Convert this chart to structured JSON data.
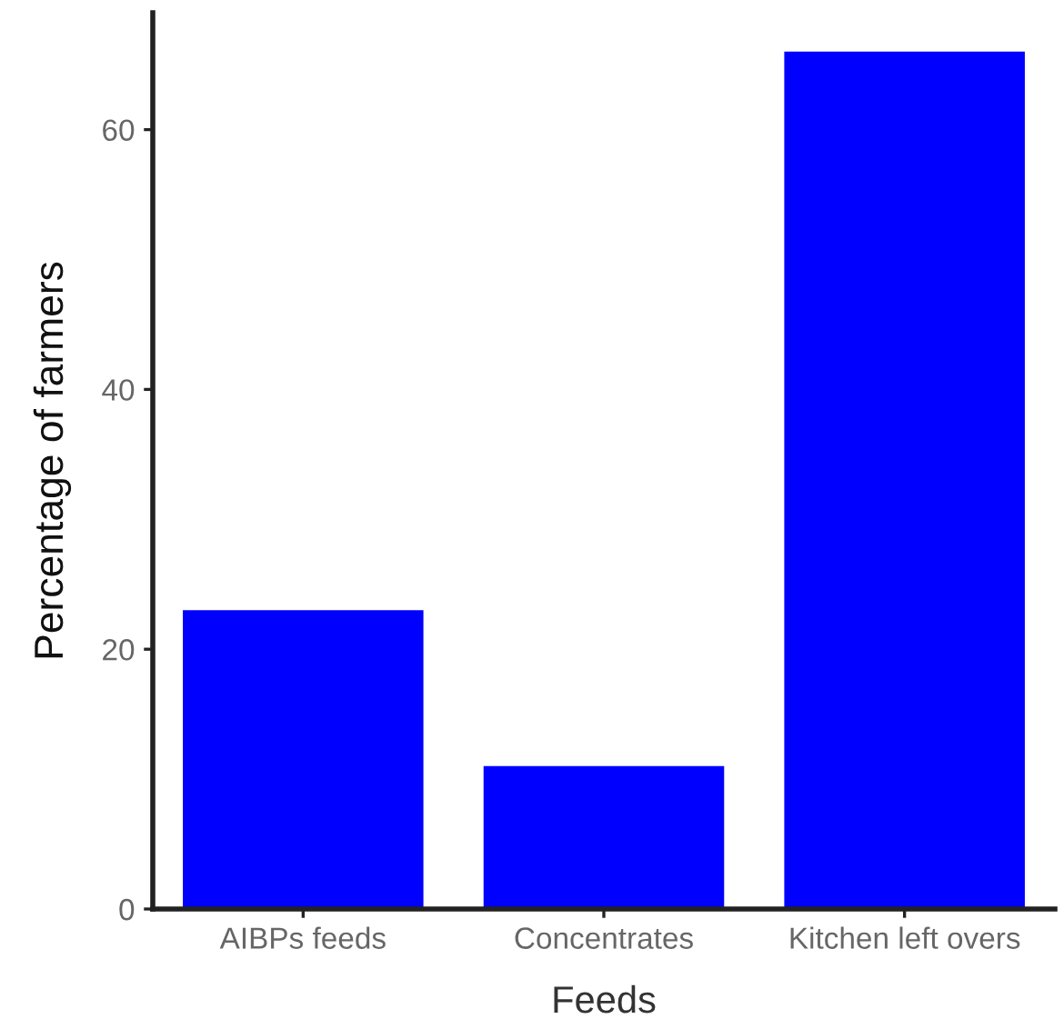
{
  "chart_data": {
    "type": "bar",
    "xlabel": "Feeds",
    "ylabel": "Percentage of farmers",
    "categories": [
      "AIBPs feeds",
      "Concentrates",
      "Kitchen left overs"
    ],
    "values": [
      23,
      11,
      66
    ],
    "color": "#0000ff",
    "ylim": [
      0,
      69
    ],
    "yticks": [
      0,
      20,
      40,
      60
    ],
    "grid": false,
    "legend": false
  }
}
